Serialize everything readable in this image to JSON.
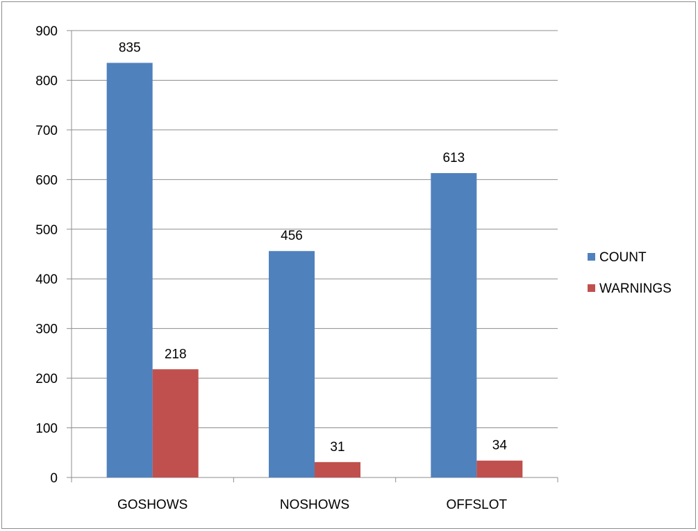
{
  "chart_data": {
    "type": "bar",
    "title": "",
    "xlabel": "",
    "ylabel": "",
    "categories": [
      "GOSHOWS",
      "NOSHOWS",
      "OFFSLOT"
    ],
    "series": [
      {
        "name": "COUNT",
        "values": [
          835,
          456,
          613
        ],
        "color": "#4F81BD"
      },
      {
        "name": "WARNINGS",
        "values": [
          218,
          31,
          34
        ],
        "color": "#C0504D"
      }
    ],
    "ylim": [
      0,
      900
    ],
    "yticks": [
      0,
      100,
      200,
      300,
      400,
      500,
      600,
      700,
      800,
      900
    ],
    "grid": true,
    "legend_position": "right"
  }
}
